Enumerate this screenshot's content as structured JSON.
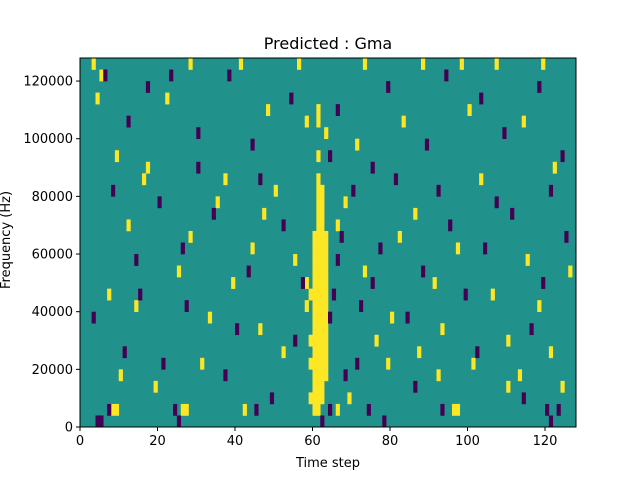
{
  "chart_data": {
    "type": "heatmap",
    "title": "Predicted : Gma",
    "xlabel": "Time step",
    "ylabel": "Frequency (Hz)",
    "xlim": [
      0,
      128
    ],
    "ylim": [
      0,
      128000
    ],
    "x_ticks": [
      0,
      20,
      40,
      60,
      80,
      100,
      120
    ],
    "y_ticks": [
      0,
      20000,
      40000,
      60000,
      80000,
      100000,
      120000
    ],
    "grid": false,
    "legend": "none",
    "colors": {
      "background": "#21918c",
      "high": "#fde725",
      "low": "#440154"
    },
    "high_cells": [
      [
        60,
        4000
      ],
      [
        60,
        8000
      ],
      [
        60,
        12000
      ],
      [
        60,
        16000
      ],
      [
        60,
        20000
      ],
      [
        60,
        24000
      ],
      [
        60,
        28000
      ],
      [
        60,
        32000
      ],
      [
        60,
        36000
      ],
      [
        60,
        40000
      ],
      [
        60,
        44000
      ],
      [
        60,
        48000
      ],
      [
        60,
        52000
      ],
      [
        60,
        56000
      ],
      [
        60,
        60000
      ],
      [
        60,
        64000
      ],
      [
        61,
        4000
      ],
      [
        61,
        8000
      ],
      [
        61,
        12000
      ],
      [
        61,
        16000
      ],
      [
        61,
        20000
      ],
      [
        61,
        24000
      ],
      [
        61,
        28000
      ],
      [
        61,
        32000
      ],
      [
        61,
        36000
      ],
      [
        61,
        40000
      ],
      [
        61,
        44000
      ],
      [
        61,
        48000
      ],
      [
        61,
        52000
      ],
      [
        61,
        56000
      ],
      [
        61,
        60000
      ],
      [
        61,
        64000
      ],
      [
        61,
        68000
      ],
      [
        61,
        72000
      ],
      [
        61,
        76000
      ],
      [
        61,
        80000
      ],
      [
        61,
        84000
      ],
      [
        61,
        92000
      ],
      [
        61,
        104000
      ],
      [
        61,
        108000
      ],
      [
        62,
        8000
      ],
      [
        62,
        12000
      ],
      [
        62,
        16000
      ],
      [
        62,
        20000
      ],
      [
        62,
        24000
      ],
      [
        62,
        28000
      ],
      [
        62,
        32000
      ],
      [
        62,
        36000
      ],
      [
        62,
        40000
      ],
      [
        62,
        44000
      ],
      [
        62,
        48000
      ],
      [
        62,
        52000
      ],
      [
        62,
        56000
      ],
      [
        62,
        60000
      ],
      [
        62,
        64000
      ],
      [
        62,
        68000
      ],
      [
        62,
        72000
      ],
      [
        62,
        76000
      ],
      [
        62,
        80000
      ],
      [
        63,
        16000
      ],
      [
        63,
        20000
      ],
      [
        63,
        24000
      ],
      [
        63,
        28000
      ],
      [
        63,
        32000
      ],
      [
        63,
        36000
      ],
      [
        63,
        40000
      ],
      [
        63,
        44000
      ],
      [
        63,
        48000
      ],
      [
        63,
        52000
      ],
      [
        63,
        56000
      ],
      [
        63,
        60000
      ],
      [
        63,
        64000
      ],
      [
        59,
        8000
      ],
      [
        59,
        20000
      ],
      [
        59,
        28000
      ],
      [
        58,
        48000
      ],
      [
        59,
        44000
      ],
      [
        8,
        4000
      ],
      [
        9,
        4000
      ],
      [
        26,
        4000
      ],
      [
        27,
        4000
      ],
      [
        42,
        4000
      ],
      [
        66,
        4000
      ],
      [
        96,
        4000
      ],
      [
        97,
        4000
      ],
      [
        3,
        124000
      ],
      [
        5,
        120000
      ],
      [
        28,
        124000
      ],
      [
        41,
        124000
      ],
      [
        56,
        124000
      ],
      [
        73,
        124000
      ],
      [
        88,
        124000
      ],
      [
        98,
        124000
      ],
      [
        107,
        124000
      ],
      [
        119,
        124000
      ],
      [
        4,
        112000
      ],
      [
        22,
        112000
      ],
      [
        48,
        108000
      ],
      [
        58,
        104000
      ],
      [
        63,
        100000
      ],
      [
        71,
        96000
      ],
      [
        83,
        104000
      ],
      [
        100,
        108000
      ],
      [
        114,
        104000
      ],
      [
        9,
        92000
      ],
      [
        17,
        88000
      ],
      [
        37,
        84000
      ],
      [
        50,
        80000
      ],
      [
        68,
        76000
      ],
      [
        86,
        72000
      ],
      [
        103,
        84000
      ],
      [
        122,
        88000
      ],
      [
        12,
        68000
      ],
      [
        28,
        64000
      ],
      [
        44,
        60000
      ],
      [
        55,
        56000
      ],
      [
        73,
        52000
      ],
      [
        91,
        48000
      ],
      [
        106,
        44000
      ],
      [
        118,
        40000
      ],
      [
        7,
        44000
      ],
      [
        14,
        40000
      ],
      [
        33,
        36000
      ],
      [
        46,
        32000
      ],
      [
        76,
        28000
      ],
      [
        87,
        24000
      ],
      [
        101,
        20000
      ],
      [
        113,
        16000
      ],
      [
        124,
        12000
      ],
      [
        10,
        16000
      ],
      [
        19,
        12000
      ],
      [
        31,
        20000
      ],
      [
        52,
        24000
      ],
      [
        69,
        8000
      ],
      [
        79,
        20000
      ],
      [
        92,
        16000
      ],
      [
        110,
        12000
      ],
      [
        25,
        52000
      ],
      [
        39,
        48000
      ],
      [
        58,
        40000
      ],
      [
        80,
        36000
      ],
      [
        93,
        32000
      ],
      [
        110,
        28000
      ],
      [
        121,
        24000
      ],
      [
        16,
        84000
      ],
      [
        35,
        76000
      ],
      [
        47,
        72000
      ],
      [
        66,
        68000
      ],
      [
        82,
        64000
      ],
      [
        97,
        60000
      ],
      [
        115,
        56000
      ],
      [
        126,
        52000
      ]
    ],
    "low_cells": [
      [
        4,
        0
      ],
      [
        5,
        0
      ],
      [
        7,
        4000
      ],
      [
        24,
        4000
      ],
      [
        25,
        0
      ],
      [
        45,
        4000
      ],
      [
        64,
        4000
      ],
      [
        74,
        4000
      ],
      [
        78,
        0
      ],
      [
        93,
        4000
      ],
      [
        120,
        4000
      ],
      [
        121,
        0
      ],
      [
        6,
        120000
      ],
      [
        17,
        116000
      ],
      [
        23,
        120000
      ],
      [
        38,
        120000
      ],
      [
        54,
        112000
      ],
      [
        66,
        108000
      ],
      [
        79,
        116000
      ],
      [
        94,
        120000
      ],
      [
        103,
        112000
      ],
      [
        118,
        116000
      ],
      [
        12,
        104000
      ],
      [
        30,
        100000
      ],
      [
        44,
        96000
      ],
      [
        64,
        92000
      ],
      [
        75,
        88000
      ],
      [
        89,
        96000
      ],
      [
        109,
        100000
      ],
      [
        124,
        92000
      ],
      [
        8,
        80000
      ],
      [
        20,
        76000
      ],
      [
        34,
        72000
      ],
      [
        52,
        68000
      ],
      [
        67,
        64000
      ],
      [
        77,
        60000
      ],
      [
        95,
        68000
      ],
      [
        111,
        72000
      ],
      [
        3,
        36000
      ],
      [
        15,
        44000
      ],
      [
        27,
        40000
      ],
      [
        40,
        32000
      ],
      [
        55,
        28000
      ],
      [
        64,
        36000
      ],
      [
        65,
        44000
      ],
      [
        72,
        40000
      ],
      [
        84,
        36000
      ],
      [
        99,
        44000
      ],
      [
        116,
        32000
      ],
      [
        11,
        24000
      ],
      [
        21,
        20000
      ],
      [
        37,
        16000
      ],
      [
        49,
        8000
      ],
      [
        62,
        0
      ],
      [
        68,
        16000
      ],
      [
        71,
        20000
      ],
      [
        86,
        12000
      ],
      [
        102,
        24000
      ],
      [
        114,
        8000
      ],
      [
        123,
        4000
      ],
      [
        14,
        56000
      ],
      [
        26,
        60000
      ],
      [
        43,
        52000
      ],
      [
        57,
        48000
      ],
      [
        66,
        56000
      ],
      [
        75,
        48000
      ],
      [
        88,
        52000
      ],
      [
        104,
        60000
      ],
      [
        119,
        48000
      ],
      [
        30,
        88000
      ],
      [
        46,
        84000
      ],
      [
        70,
        80000
      ],
      [
        81,
        84000
      ],
      [
        92,
        80000
      ],
      [
        107,
        76000
      ],
      [
        121,
        80000
      ],
      [
        125,
        64000
      ]
    ]
  }
}
